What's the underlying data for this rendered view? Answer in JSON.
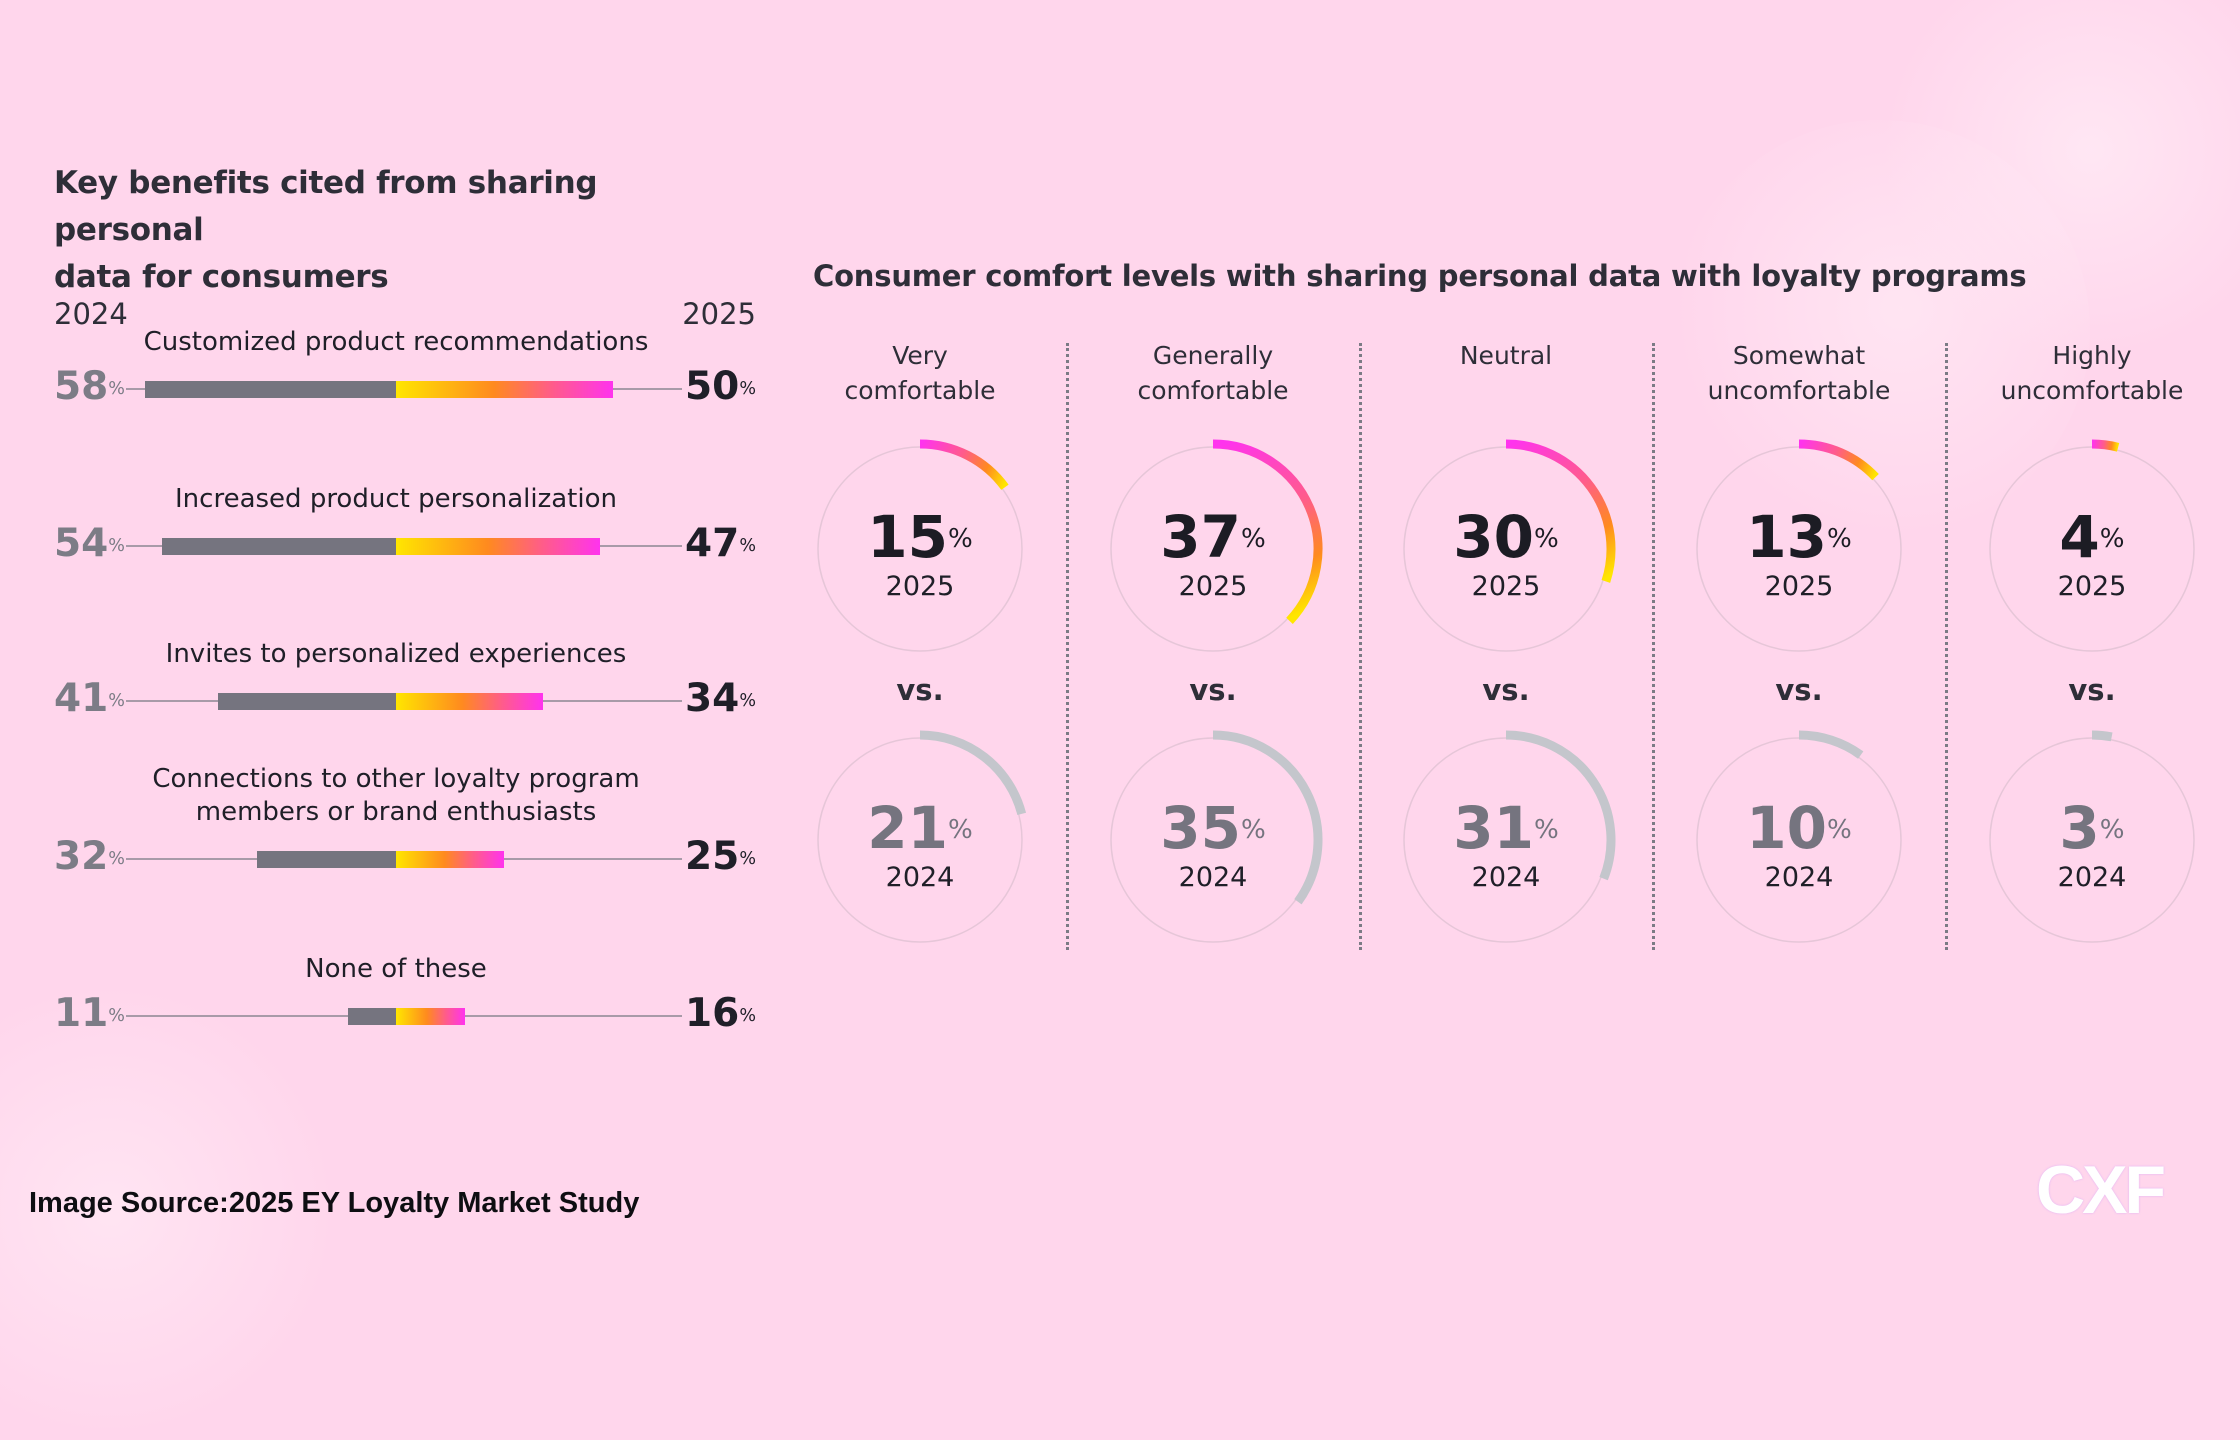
{
  "left_panel": {
    "title_line1": "Key benefits cited from sharing personal",
    "title_line2": "data for consumers",
    "year_left": "2024",
    "year_right": "2025",
    "pct_suffix": "%"
  },
  "right_panel": {
    "title": "Consumer comfort levels with sharing personal data with loyalty programs",
    "vs_label": "vs.",
    "year_2025": "2025",
    "year_2024": "2024"
  },
  "footer": {
    "source": "Image Source:2025 EY Loyalty Market Study",
    "logo": "CXF"
  },
  "colors": {
    "background": "#ffd6ec",
    "bar_2024": "#75747f",
    "gradient_start": "#ffe600",
    "gradient_mid": "#ff8a1f",
    "gradient_end": "#ff33ee",
    "arc_2024": "#c4c6cc",
    "text_dark": "#2e2e38"
  },
  "chart_data": [
    {
      "type": "bar",
      "subtype": "diverging-comparison",
      "title": "Key benefits cited from sharing personal data for consumers",
      "xlabel": "",
      "ylabel": "",
      "unit": "%",
      "categories": [
        "Customized product recommendations",
        "Increased product personalization",
        "Invites to personalized experiences",
        "Connections to other loyalty program members or brand enthusiasts",
        "None of these"
      ],
      "category_lines": [
        [
          "Customized product recommendations"
        ],
        [
          "Increased product personalization"
        ],
        [
          "Invites to personalized experiences"
        ],
        [
          "Connections to other loyalty program",
          "members or brand enthusiasts"
        ],
        [
          "None of these"
        ]
      ],
      "series": [
        {
          "name": "2024",
          "values": [
            58,
            54,
            41,
            32,
            11
          ]
        },
        {
          "name": "2025",
          "values": [
            50,
            47,
            34,
            25,
            16
          ]
        }
      ],
      "legend": "top (2024 left, 2025 right)",
      "grid": false
    },
    {
      "type": "pie",
      "subtype": "radial-progress",
      "title": "Consumer comfort levels with sharing personal data with loyalty programs",
      "unit": "%",
      "categories": [
        "Very comfortable",
        "Generally comfortable",
        "Neutral",
        "Somewhat uncomfortable",
        "Highly uncomfortable"
      ],
      "category_lines": [
        [
          "Very",
          "comfortable"
        ],
        [
          "Generally",
          "comfortable"
        ],
        [
          "Neutral"
        ],
        [
          "Somewhat",
          "uncomfortable"
        ],
        [
          "Highly",
          "uncomfortable"
        ]
      ],
      "series": [
        {
          "name": "2025",
          "values": [
            15,
            37,
            30,
            13,
            4
          ]
        },
        {
          "name": "2024",
          "values": [
            21,
            35,
            31,
            10,
            3
          ]
        }
      ]
    }
  ]
}
